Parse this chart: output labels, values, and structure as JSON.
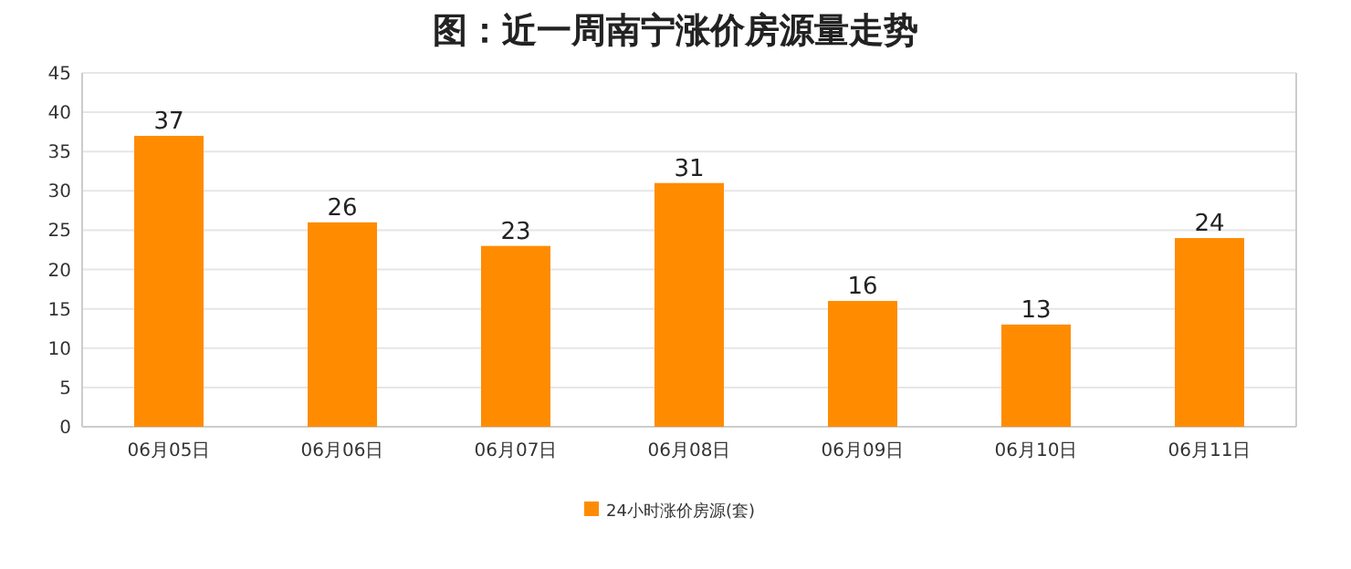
{
  "chart_data": {
    "type": "bar",
    "title": "图：近一周南宁涨价房源量走势",
    "categories": [
      "06月05日",
      "06月06日",
      "06月07日",
      "06月08日",
      "06月09日",
      "06月10日",
      "06月11日"
    ],
    "series": [
      {
        "name": "24小时涨价房源(套)",
        "color": "#ff8c00",
        "values": [
          37,
          26,
          23,
          31,
          16,
          13,
          24
        ]
      }
    ],
    "ylim": [
      0,
      45
    ],
    "yticks": [
      0,
      5,
      10,
      15,
      20,
      25,
      30,
      35,
      40,
      45
    ],
    "grid": "y",
    "legend": "bottom",
    "data_labels": true
  }
}
